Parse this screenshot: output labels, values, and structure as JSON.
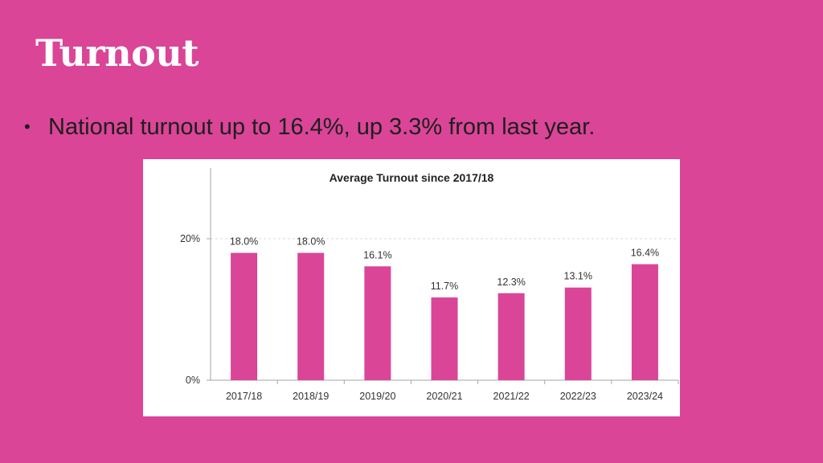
{
  "slide": {
    "title": "Turnout",
    "bullets": [
      {
        "marker": "•",
        "text": "National turnout up to 16.4%, up 3.3% from last year."
      }
    ]
  },
  "colors": {
    "background": "#DA4597",
    "bar": "#DA4597",
    "chart_background": "#FFFFFF"
  },
  "chart_data": {
    "type": "bar",
    "title": "Average Turnout since 2017/18",
    "xlabel": "",
    "ylabel": "",
    "categories": [
      "2017/18",
      "2018/19",
      "2019/20",
      "2020/21",
      "2021/22",
      "2022/23",
      "2023/24"
    ],
    "series": [
      {
        "values": [
          18.0,
          18.0,
          16.1,
          11.7,
          12.3,
          13.1,
          16.4
        ]
      }
    ],
    "data_labels": [
      "18.0%",
      "18.0%",
      "16.1%",
      "11.7%",
      "12.3%",
      "13.1%",
      "16.4%"
    ],
    "ylim": [
      0,
      20
    ],
    "y_ticks": [
      {
        "value": 0,
        "label": "0%"
      },
      {
        "value": 20,
        "label": "20%"
      }
    ],
    "grid": true,
    "legend": "none"
  }
}
